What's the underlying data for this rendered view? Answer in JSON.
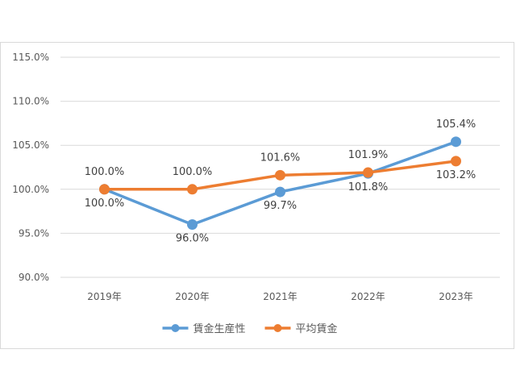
{
  "chart_data": {
    "type": "line",
    "title": "",
    "xlabel": "",
    "ylabel": "",
    "categories": [
      "2019年",
      "2020年",
      "2021年",
      "2022年",
      "2023年"
    ],
    "ylim": [
      90,
      115
    ],
    "yticks": [
      "90.0%",
      "95.0%",
      "100.0%",
      "105.0%",
      "110.0%",
      "115.0%"
    ],
    "grid": true,
    "legend_position": "bottom",
    "series": [
      {
        "name": "賃金生産性",
        "color": "#5b9bd5",
        "values": [
          100.0,
          96.0,
          99.7,
          101.8,
          105.4
        ],
        "labels": [
          "100.0%",
          "96.0%",
          "99.7%",
          "101.8%",
          "105.4%"
        ],
        "label_side": [
          "below",
          "below",
          "below",
          "below",
          "above"
        ]
      },
      {
        "name": "平均賃金",
        "color": "#ed7d31",
        "values": [
          100.0,
          100.0,
          101.6,
          101.9,
          103.2
        ],
        "labels": [
          "100.0%",
          "100.0%",
          "101.6%",
          "101.9%",
          "103.2%"
        ],
        "label_side": [
          "above",
          "above",
          "above",
          "above",
          "below"
        ]
      }
    ]
  }
}
